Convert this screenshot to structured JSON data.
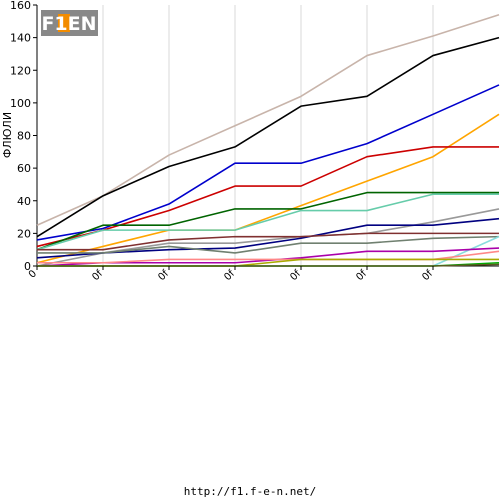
{
  "logo": {
    "text": "F1EN",
    "bg": "#888888",
    "accent": "#f28c00"
  },
  "source_url": "http://f1.f-e-n.net/",
  "chart_data": {
    "type": "line",
    "title": "",
    "xlabel": "",
    "ylabel": "ФЛЮЛИ",
    "ylim": [
      0,
      160
    ],
    "yticks": [
      0,
      20,
      40,
      60,
      80,
      100,
      120,
      140,
      160
    ],
    "x": [
      0,
      1,
      2,
      3,
      4,
      5,
      6,
      7
    ],
    "xticks": [
      0,
      1,
      2,
      3,
      4,
      5,
      6
    ],
    "xtick_labels": [
      "0",
      "0f",
      "0f",
      "0f",
      "0f",
      "0f",
      "0f"
    ],
    "grid": {
      "vertical": true,
      "horizontal": false
    },
    "series": [
      {
        "color": "#c8b4aa",
        "values": [
          25,
          43,
          68,
          86,
          104,
          129,
          141,
          154
        ]
      },
      {
        "color": "#000000",
        "values": [
          18,
          43,
          61,
          73,
          98,
          104,
          129,
          140
        ]
      },
      {
        "color": "#0000cc",
        "values": [
          16,
          23,
          38,
          63,
          63,
          75,
          93,
          111
        ]
      },
      {
        "color": "#ffa500",
        "values": [
          2,
          12,
          22,
          22,
          37,
          52,
          67,
          93
        ]
      },
      {
        "color": "#cc0000",
        "values": [
          12,
          22,
          34,
          49,
          49,
          67,
          73,
          73
        ]
      },
      {
        "color": "#006400",
        "values": [
          10,
          25,
          25,
          35,
          35,
          45,
          45,
          45
        ]
      },
      {
        "color": "#66ccaa",
        "values": [
          10,
          22,
          22,
          22,
          34,
          34,
          44,
          44
        ]
      },
      {
        "color": "#999999",
        "values": [
          0,
          8,
          14,
          14,
          18,
          20,
          27,
          35
        ]
      },
      {
        "color": "#000080",
        "values": [
          5,
          8,
          10,
          11,
          17,
          25,
          25,
          29
        ]
      },
      {
        "color": "#803030",
        "values": [
          10,
          10,
          16,
          18,
          18,
          20,
          20,
          20
        ]
      },
      {
        "color": "#708070",
        "values": [
          8,
          8,
          12,
          8,
          14,
          14,
          17,
          18
        ]
      },
      {
        "color": "#88dddd",
        "values": [
          0,
          0,
          0,
          0,
          0,
          0,
          0,
          18
        ]
      },
      {
        "color": "#aa00aa",
        "values": [
          0,
          2,
          2,
          2,
          5,
          9,
          9,
          11
        ]
      },
      {
        "color": "#ff8888",
        "values": [
          2,
          2,
          4,
          4,
          4,
          4,
          4,
          9
        ]
      },
      {
        "color": "#aaaa00",
        "values": [
          0,
          0,
          0,
          0,
          4,
          4,
          4,
          4
        ]
      },
      {
        "color": "#00aa00",
        "values": [
          0,
          0,
          0,
          0,
          0,
          0,
          0,
          2
        ]
      },
      {
        "color": "#5a5a20",
        "values": [
          0,
          0,
          0,
          0,
          0,
          0,
          0,
          1
        ]
      }
    ]
  }
}
